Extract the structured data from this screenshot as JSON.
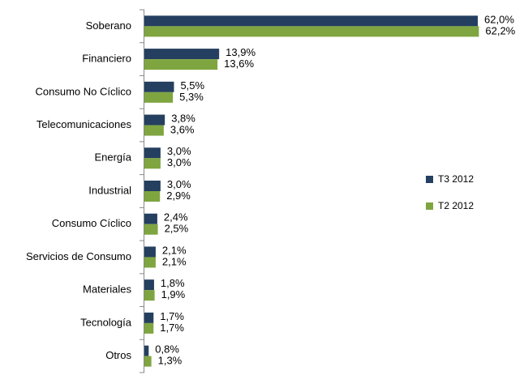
{
  "chart_data": {
    "type": "bar",
    "orientation": "horizontal",
    "categories": [
      "Soberano",
      "Financiero",
      "Consumo No Cíclico",
      "Telecomunicaciones",
      "Energía",
      "Industrial",
      "Consumo Cíclico",
      "Servicios de Consumo",
      "Materiales",
      "Tecnología",
      "Otros"
    ],
    "series": [
      {
        "name": "T3 2012",
        "color": "#243f60",
        "values": [
          62.0,
          13.9,
          5.5,
          3.8,
          3.0,
          3.0,
          2.4,
          2.1,
          1.8,
          1.7,
          0.8
        ],
        "value_labels": [
          "62,0%",
          "13,9%",
          "5,5%",
          "3,8%",
          "3,0%",
          "3,0%",
          "2,4%",
          "2,1%",
          "1,8%",
          "1,7%",
          "0,8%"
        ]
      },
      {
        "name": "T2 2012",
        "color": "#7fa540",
        "values": [
          62.2,
          13.6,
          5.3,
          3.6,
          3.0,
          2.9,
          2.5,
          2.1,
          1.9,
          1.7,
          1.3
        ],
        "value_labels": [
          "62,2%",
          "13,6%",
          "5,3%",
          "3,6%",
          "3,0%",
          "2,9%",
          "2,5%",
          "2,1%",
          "1,9%",
          "1,7%",
          "1,3%"
        ]
      }
    ],
    "legend": "right"
  }
}
